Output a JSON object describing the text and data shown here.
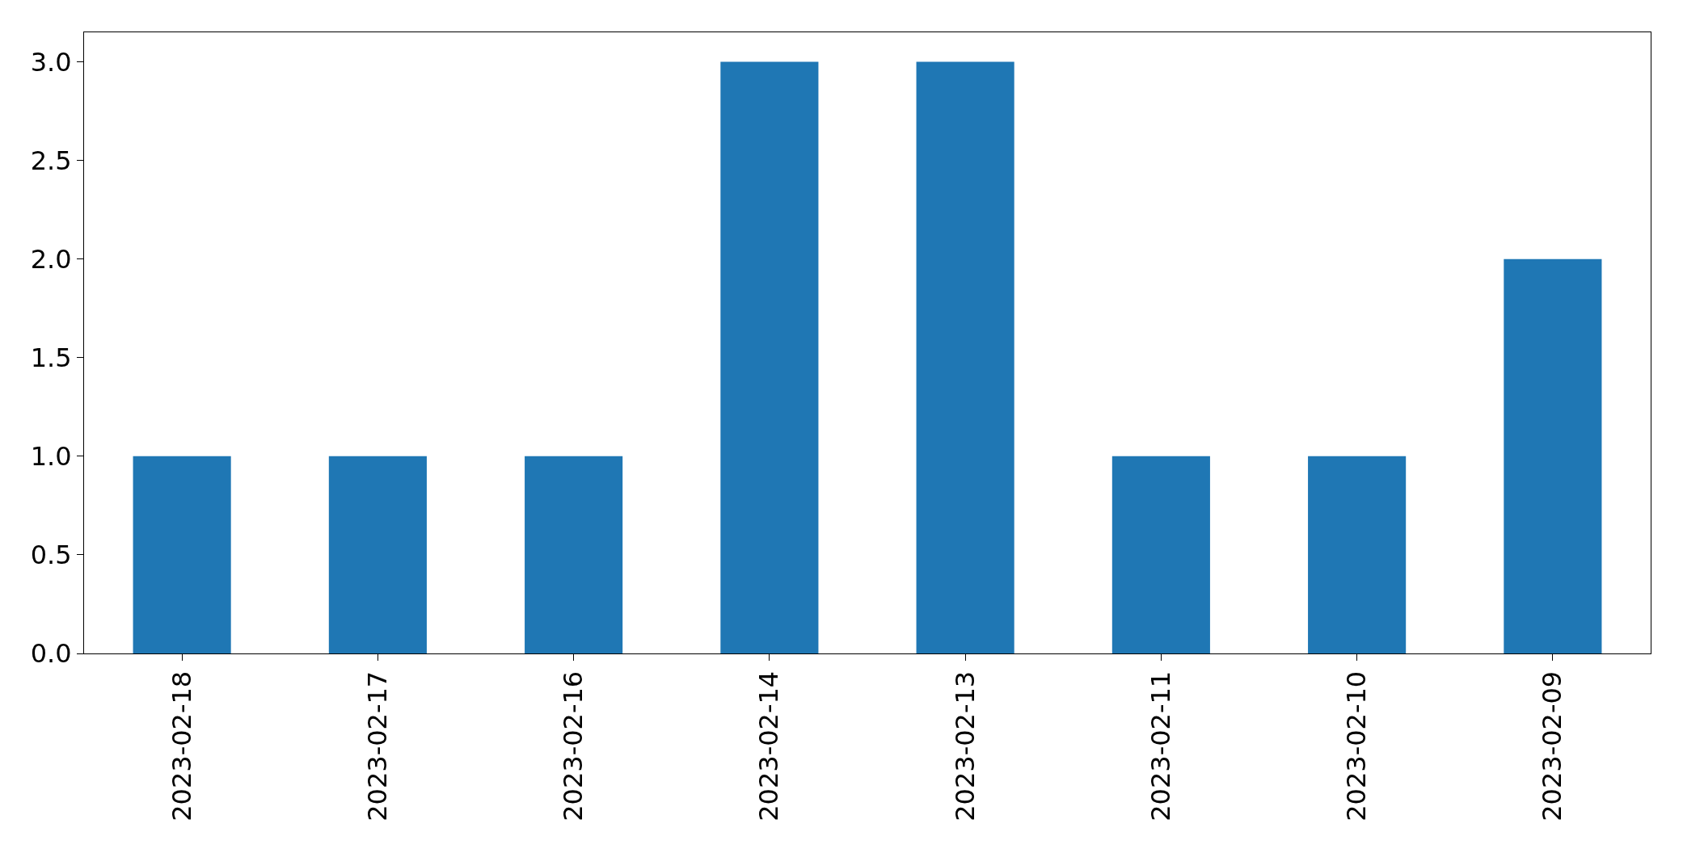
{
  "chart_data": {
    "type": "bar",
    "categories": [
      "2023-02-18",
      "2023-02-17",
      "2023-02-16",
      "2023-02-14",
      "2023-02-13",
      "2023-02-11",
      "2023-02-10",
      "2023-02-09"
    ],
    "values": [
      1,
      1,
      1,
      3,
      3,
      1,
      1,
      2
    ],
    "color": "#1f77b4",
    "ylim": [
      0,
      3.15
    ],
    "yticks": [
      {
        "value": 0,
        "label": "0.0"
      },
      {
        "value": 0.5,
        "label": "0.5"
      },
      {
        "value": 1,
        "label": "1.0"
      },
      {
        "value": 1.5,
        "label": "1.5"
      },
      {
        "value": 2,
        "label": "2.0"
      },
      {
        "value": 2.5,
        "label": "2.5"
      },
      {
        "value": 3,
        "label": "3.0"
      }
    ],
    "legend": false
  }
}
